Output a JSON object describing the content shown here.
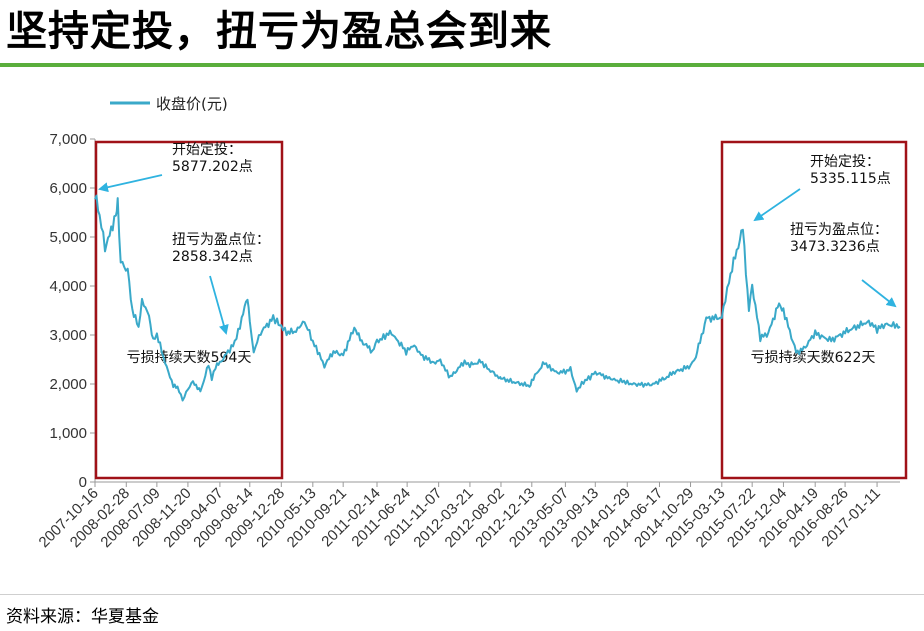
{
  "title": "坚持定投，扭亏为盈总会到来",
  "source": "资料来源：华夏基金",
  "colors": {
    "line": "#3aa9c9",
    "box": "#a01218",
    "rule": "#5aae3c",
    "arrow": "#2fb3e0"
  },
  "chart_data": {
    "type": "line",
    "legend": "收盘价(元)",
    "legend_position": "top-left",
    "grid": false,
    "ylim": [
      0,
      7000
    ],
    "yticks": [
      "0",
      "1,000",
      "2,000",
      "3,000",
      "4,000",
      "5,000",
      "6,000",
      "7,000"
    ],
    "xticks": [
      "2007-10-16",
      "2008-02-28",
      "2008-07-09",
      "2008-11-20",
      "2009-04-07",
      "2009-08-14",
      "2009-12-28",
      "2010-05-13",
      "2010-09-21",
      "2011-02-14",
      "2011-06-24",
      "2011-11-07",
      "2012-03-21",
      "2012-08-02",
      "2012-12-13",
      "2013-05-07",
      "2013-09-13",
      "2014-01-29",
      "2014-06-17",
      "2014-10-29",
      "2015-03-13",
      "2015-07-22",
      "2015-12-04",
      "2016-04-19",
      "2016-08-26",
      "2017-01-11"
    ],
    "xrange": [
      "2007-10-16",
      "2017-04-20"
    ],
    "series": [
      {
        "name": "收盘价(元)",
        "points": [
          [
            "2007-10-16",
            5877
          ],
          [
            "2007-11-05",
            5450
          ],
          [
            "2007-11-28",
            4800
          ],
          [
            "2007-12-18",
            5050
          ],
          [
            "2008-01-14",
            5500
          ],
          [
            "2008-01-22",
            5700
          ],
          [
            "2008-02-04",
            4500
          ],
          [
            "2008-03-05",
            4300
          ],
          [
            "2008-03-25",
            3500
          ],
          [
            "2008-04-21",
            3150
          ],
          [
            "2008-05-06",
            3700
          ],
          [
            "2008-06-05",
            3400
          ],
          [
            "2008-06-23",
            2900
          ],
          [
            "2008-07-09",
            3000
          ],
          [
            "2008-08-13",
            2450
          ],
          [
            "2008-09-18",
            1950
          ],
          [
            "2008-10-06",
            1950
          ],
          [
            "2008-10-28",
            1665
          ],
          [
            "2008-11-20",
            1900
          ],
          [
            "2008-12-12",
            2050
          ],
          [
            "2009-01-13",
            1850
          ],
          [
            "2009-02-17",
            2400
          ],
          [
            "2009-03-03",
            2100
          ],
          [
            "2009-03-19",
            2350
          ],
          [
            "2009-04-07",
            2430
          ],
          [
            "2009-05-12",
            2650
          ],
          [
            "2009-06-10",
            2850
          ],
          [
            "2009-07-10",
            3300
          ],
          [
            "2009-08-04",
            3780
          ],
          [
            "2009-08-14",
            3250
          ],
          [
            "2009-08-31",
            2660
          ],
          [
            "2009-09-30",
            3060
          ],
          [
            "2009-11-23",
            3360
          ],
          [
            "2009-12-10",
            3260
          ],
          [
            "2009-12-28",
            3180
          ],
          [
            "2010-01-20",
            3050
          ],
          [
            "2010-02-22",
            3050
          ],
          [
            "2010-04-07",
            3280
          ],
          [
            "2010-05-13",
            2870
          ],
          [
            "2010-07-02",
            2380
          ],
          [
            "2010-08-10",
            2650
          ],
          [
            "2010-09-21",
            2600
          ],
          [
            "2010-11-08",
            3150
          ],
          [
            "2010-12-10",
            2860
          ],
          [
            "2011-01-25",
            2680
          ],
          [
            "2011-02-14",
            2880
          ],
          [
            "2011-04-18",
            3050
          ],
          [
            "2011-06-20",
            2650
          ],
          [
            "2011-07-18",
            2800
          ],
          [
            "2011-08-30",
            2570
          ],
          [
            "2011-10-24",
            2400
          ],
          [
            "2011-11-07",
            2520
          ],
          [
            "2011-12-28",
            2130
          ],
          [
            "2012-02-27",
            2450
          ],
          [
            "2012-03-21",
            2380
          ],
          [
            "2012-05-07",
            2450
          ],
          [
            "2012-07-30",
            2100
          ],
          [
            "2012-08-02",
            2120
          ],
          [
            "2012-09-26",
            2030
          ],
          [
            "2012-12-03",
            1960
          ],
          [
            "2012-12-13",
            2080
          ],
          [
            "2013-02-06",
            2430
          ],
          [
            "2013-03-28",
            2230
          ],
          [
            "2013-05-07",
            2240
          ],
          [
            "2013-05-29",
            2320
          ],
          [
            "2013-06-25",
            1850
          ],
          [
            "2013-07-17",
            2010
          ],
          [
            "2013-09-13",
            2230
          ],
          [
            "2013-11-12",
            2110
          ],
          [
            "2014-01-29",
            2030
          ],
          [
            "2014-03-12",
            1980
          ],
          [
            "2014-05-20",
            2000
          ],
          [
            "2014-06-17",
            2050
          ],
          [
            "2014-08-15",
            2230
          ],
          [
            "2014-10-29",
            2380
          ],
          [
            "2014-11-21",
            2550
          ],
          [
            "2014-12-09",
            2860
          ],
          [
            "2015-01-05",
            3350
          ],
          [
            "2015-03-13",
            3370
          ],
          [
            "2015-04-13",
            4100
          ],
          [
            "2015-06-12",
            5178
          ],
          [
            "2015-07-08",
            3510
          ],
          [
            "2015-07-22",
            4030
          ],
          [
            "2015-08-26",
            2930
          ],
          [
            "2015-09-30",
            3050
          ],
          [
            "2015-11-09",
            3590
          ],
          [
            "2015-12-04",
            3520
          ],
          [
            "2016-01-28",
            2650
          ],
          [
            "2016-03-01",
            2730
          ],
          [
            "2016-04-19",
            3030
          ],
          [
            "2016-06-27",
            2900
          ],
          [
            "2016-08-26",
            3070
          ],
          [
            "2016-11-29",
            3280
          ],
          [
            "2017-01-11",
            3130
          ],
          [
            "2017-03-01",
            3220
          ],
          [
            "2017-04-20",
            3170
          ]
        ]
      }
    ],
    "annotations": [
      {
        "text1": "开始定投：",
        "text2": "5877.202点"
      },
      {
        "text1": "扭亏为盈点位：",
        "text2": "2858.342点"
      },
      {
        "text1": "开始定投：",
        "text2": "5335.115点"
      },
      {
        "text1": "扭亏为盈点位：",
        "text2": "3473.3236点"
      }
    ],
    "loss_periods": [
      {
        "label": "亏损持续天数594天",
        "start": "2007-10-16",
        "end": "2009-12-28"
      },
      {
        "label": "亏损持续天数622天",
        "start": "2015-03-13",
        "end": "2017-04-20"
      }
    ]
  }
}
